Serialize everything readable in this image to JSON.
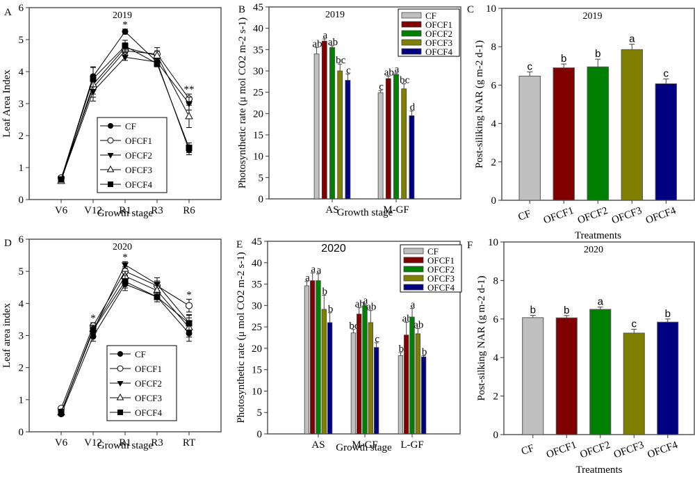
{
  "chart_data": [
    {
      "panel": "A",
      "type": "line",
      "title": "2019",
      "xlabel": "Growth stage",
      "ylabel": "Leaf Area Index",
      "categories": [
        "V6",
        "V12",
        "R1",
        "R3",
        "R6"
      ],
      "ylim": [
        0,
        6
      ],
      "yticks": [
        0,
        1,
        2,
        3,
        4,
        5,
        6
      ],
      "legend_position": "center-lower",
      "series": [
        {
          "name": "CF",
          "marker": "filled-circle",
          "values": [
            0.65,
            3.85,
            5.25,
            4.3,
            1.55
          ],
          "errors": [
            0.05,
            0.3,
            0.08,
            0.1,
            0.15
          ]
        },
        {
          "name": "OFCF1",
          "marker": "open-circle",
          "values": [
            0.68,
            3.5,
            4.65,
            4.55,
            3.15
          ],
          "errors": [
            0.05,
            0.3,
            0.15,
            0.2,
            0.15
          ]
        },
        {
          "name": "OFCF2",
          "marker": "filled-triangle-down",
          "values": [
            0.62,
            3.38,
            4.45,
            4.3,
            3.0
          ],
          "errors": [
            0.05,
            0.3,
            0.1,
            0.1,
            0.2
          ]
        },
        {
          "name": "OFCF3",
          "marker": "open-triangle-up",
          "values": [
            0.58,
            3.6,
            4.75,
            4.5,
            2.6
          ],
          "errors": [
            0.05,
            0.3,
            0.15,
            0.15,
            0.35
          ]
        },
        {
          "name": "OFCF4",
          "marker": "filled-square",
          "values": [
            0.63,
            3.78,
            4.8,
            4.25,
            1.62
          ],
          "errors": [
            0.05,
            0.35,
            0.18,
            0.1,
            0.15
          ]
        }
      ],
      "annotations": [
        {
          "at": "R1",
          "text": "*"
        },
        {
          "at": "R6",
          "text": "**"
        }
      ]
    },
    {
      "panel": "B",
      "type": "bar",
      "title": "2019",
      "xlabel": "Growth stage",
      "ylabel": "Photosynthetic rate (μ mol CO2 m-2 s-1)",
      "categories": [
        "AS",
        "M-GF"
      ],
      "ylim": [
        0,
        45
      ],
      "yticks": [
        0,
        5,
        10,
        15,
        20,
        25,
        30,
        35,
        40,
        45
      ],
      "legend_position": "top-right",
      "series": [
        {
          "name": "CF",
          "color": "#c0c0c0",
          "values": [
            34.0,
            24.9
          ],
          "errors": [
            1.5,
            0.5
          ],
          "letters": [
            "ab",
            "c"
          ]
        },
        {
          "name": "OFCF1",
          "color": "#800000",
          "values": [
            37.0,
            28.2
          ],
          "errors": [
            0.5,
            0.6
          ],
          "letters": [
            "a",
            "ab"
          ]
        },
        {
          "name": "OFCF2",
          "color": "#008000",
          "values": [
            35.5,
            29.2
          ],
          "errors": [
            0.4,
            0.3
          ],
          "letters": [
            "ab",
            "a"
          ]
        },
        {
          "name": "OFCF3",
          "color": "#808000",
          "values": [
            30.0,
            25.8
          ],
          "errors": [
            1.6,
            1.2
          ],
          "letters": [
            "bc",
            "bc"
          ]
        },
        {
          "name": "OFCF4",
          "color": "#000080",
          "values": [
            27.8,
            19.5
          ],
          "errors": [
            1.5,
            1.1
          ],
          "letters": [
            "c",
            "d"
          ]
        }
      ]
    },
    {
      "panel": "C",
      "type": "bar",
      "title": "2019",
      "xlabel": "Treatments",
      "ylabel": "Post-siliking NAR (g m-2 d-1)",
      "categories": [
        "CF",
        "OFCF1",
        "OFCF2",
        "OFCF3",
        "OFCF4"
      ],
      "ylim": [
        0,
        10
      ],
      "yticks": [
        0,
        2,
        4,
        6,
        8,
        10
      ],
      "colors": [
        "#c0c0c0",
        "#800000",
        "#008000",
        "#808000",
        "#000080"
      ],
      "values": [
        6.47,
        6.9,
        6.95,
        7.85,
        6.07
      ],
      "errors": [
        0.22,
        0.2,
        0.4,
        0.28,
        0.25
      ],
      "letters": [
        "c",
        "b",
        "b",
        "a",
        "c"
      ]
    },
    {
      "panel": "D",
      "type": "line",
      "title": "2020",
      "xlabel": "Growth stage",
      "ylabel": "Leaf area index",
      "categories": [
        "V6",
        "V12",
        "R1",
        "R3",
        "RT"
      ],
      "ylim": [
        0,
        6
      ],
      "yticks": [
        0,
        1,
        2,
        3,
        4,
        5,
        6
      ],
      "legend_position": "center-lower",
      "series": [
        {
          "name": "CF",
          "marker": "filled-circle",
          "values": [
            0.55,
            2.97,
            4.6,
            4.2,
            3.07
          ],
          "errors": [
            0.05,
            0.15,
            0.2,
            0.15,
            0.25
          ]
        },
        {
          "name": "OFCF1",
          "marker": "open-circle",
          "values": [
            0.73,
            3.3,
            5.0,
            4.55,
            3.93
          ],
          "errors": [
            0.05,
            0.1,
            0.15,
            0.15,
            0.2
          ]
        },
        {
          "name": "OFCF2",
          "marker": "filled-triangle-down",
          "values": [
            0.6,
            3.15,
            5.2,
            4.6,
            3.4
          ],
          "errors": [
            0.05,
            0.1,
            0.1,
            0.2,
            0.25
          ]
        },
        {
          "name": "OFCF3",
          "marker": "open-triangle-up",
          "values": [
            0.6,
            3.2,
            4.85,
            4.4,
            3.25
          ],
          "errors": [
            0.05,
            0.12,
            0.15,
            0.15,
            0.3
          ]
        },
        {
          "name": "OFCF4",
          "marker": "filled-square",
          "values": [
            0.62,
            3.17,
            4.68,
            4.2,
            3.38
          ],
          "errors": [
            0.05,
            0.12,
            0.2,
            0.15,
            0.25
          ]
        }
      ],
      "annotations": [
        {
          "at": "V12",
          "text": "*"
        },
        {
          "at": "R1",
          "text": "*"
        },
        {
          "at": "RT",
          "text": "*"
        }
      ]
    },
    {
      "panel": "E",
      "type": "bar",
      "title": "2020",
      "xlabel": "Growth stage",
      "ylabel": "Photosynthetic rate (μ mol CO2 m-2 s-1)",
      "categories": [
        "AS",
        "M-GF",
        "L-GF"
      ],
      "ylim": [
        0,
        45
      ],
      "yticks": [
        0,
        5,
        10,
        15,
        20,
        25,
        30,
        35,
        40,
        45
      ],
      "legend_position": "top-right",
      "series": [
        {
          "name": "CF",
          "color": "#c0c0c0",
          "values": [
            34.6,
            23.6,
            18.3
          ],
          "errors": [
            1.0,
            0.8,
            0.7
          ],
          "letters": [
            "a",
            "bc",
            "b"
          ]
        },
        {
          "name": "OFCF1",
          "color": "#800000",
          "values": [
            35.8,
            28.0,
            23.1
          ],
          "errors": [
            1.8,
            1.5,
            3.0
          ],
          "letters": [
            "a",
            "ab",
            "ab"
          ]
        },
        {
          "name": "OFCF2",
          "color": "#008000",
          "values": [
            35.8,
            30.0,
            27.3
          ],
          "errors": [
            1.6,
            0.3,
            2.0
          ],
          "letters": [
            "a",
            "a",
            "a"
          ]
        },
        {
          "name": "OFCF3",
          "color": "#808000",
          "values": [
            29.1,
            26.0,
            23.4
          ],
          "errors": [
            3.3,
            2.8,
            1.2
          ],
          "letters": [
            "b",
            "ab",
            "ab"
          ]
        },
        {
          "name": "OFCF4",
          "color": "#000080",
          "values": [
            26.0,
            20.2,
            18.0
          ],
          "errors": [
            2.3,
            1.1,
            0.3
          ],
          "letters": [
            "b",
            "c",
            "b"
          ]
        }
      ]
    },
    {
      "panel": "F",
      "type": "bar",
      "title": "2020",
      "xlabel": "Treatments",
      "ylabel": "Post-silking NAR (g m-2 d-1)",
      "categories": [
        "CF",
        "OFCF1",
        "OFCF2",
        "OFCF3",
        "OFCF4"
      ],
      "ylim": [
        0,
        10
      ],
      "yticks": [
        0,
        2,
        4,
        6,
        8,
        10
      ],
      "colors": [
        "#c0c0c0",
        "#800000",
        "#008000",
        "#808000",
        "#000080"
      ],
      "values": [
        6.07,
        6.06,
        6.5,
        5.27,
        5.84
      ],
      "errors": [
        0.12,
        0.12,
        0.12,
        0.2,
        0.16
      ],
      "letters": [
        "b",
        "b",
        "a",
        "c",
        "b"
      ]
    }
  ]
}
